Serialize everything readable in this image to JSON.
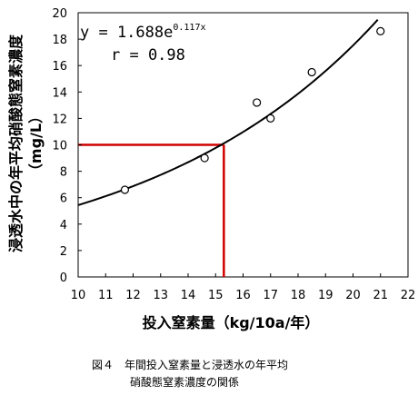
{
  "chart_data": {
    "type": "scatter",
    "xlabel": "投入窒素量（kg/10a/年）",
    "ylabel_main": "浸透水中の年平均硝酸態窒素濃度",
    "ylabel_unit": "（mg/L）",
    "xlim": [
      10,
      22
    ],
    "ylim": [
      0,
      20
    ],
    "x_ticks": [
      "10",
      "11",
      "12",
      "13",
      "14",
      "15",
      "16",
      "17",
      "18",
      "19",
      "20",
      "21",
      "22"
    ],
    "y_ticks": [
      "0",
      "2",
      "4",
      "6",
      "8",
      "10",
      "12",
      "14",
      "16",
      "18",
      "20"
    ],
    "points": [
      {
        "x": 11.7,
        "y": 6.6
      },
      {
        "x": 14.6,
        "y": 9.0
      },
      {
        "x": 16.5,
        "y": 13.2
      },
      {
        "x": 17.0,
        "y": 12.0
      },
      {
        "x": 18.5,
        "y": 15.5
      },
      {
        "x": 21.0,
        "y": 18.6
      }
    ],
    "fit": {
      "a": 1.688,
      "b": 0.117,
      "x_range": [
        10,
        20.9
      ]
    },
    "equation_base": "y = 1.688e",
    "equation_exp": "0.117x",
    "r_label": "r = 0.98",
    "reference": {
      "x": 15.3,
      "y": 10,
      "color": "#d00000"
    },
    "grid": false
  },
  "caption": {
    "line1": "図４　年間投入窒素量と浸透水の年平均",
    "line2": "硝酸態窒素濃度の関係"
  }
}
